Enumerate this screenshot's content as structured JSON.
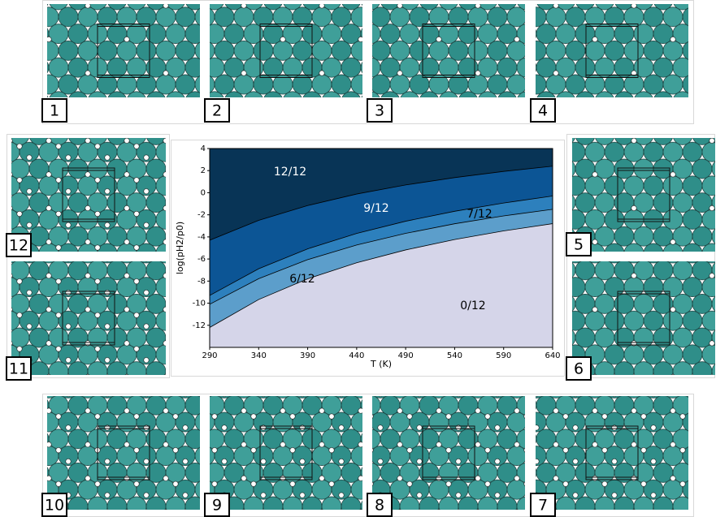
{
  "chart_data": {
    "type": "area",
    "x": [
      290,
      340,
      390,
      440,
      490,
      540,
      590,
      640
    ],
    "xlim": [
      290,
      640
    ],
    "ylim": [
      -14,
      4
    ],
    "xticks": [
      290,
      340,
      390,
      440,
      490,
      540,
      590,
      640
    ],
    "yticks": [
      -12,
      -10,
      -8,
      -6,
      -4,
      -2,
      0,
      2,
      4
    ],
    "xlabel": "T (K)",
    "ylabel": "log(pH2/p0)",
    "regions": [
      {
        "label": "0/12",
        "color": "#d5d5e9",
        "label_color": "#000000"
      },
      {
        "label": "6/12",
        "color": "#5c9ecb",
        "label_color": "#000000"
      },
      {
        "label": "7/12",
        "color": "#2d80bd",
        "label_color": "#000000"
      },
      {
        "label": "9/12",
        "color": "#0c5595",
        "label_color": "#ffffff"
      },
      {
        "label": "12/12",
        "color": "#083456",
        "label_color": "#ffffff"
      }
    ],
    "boundaries": [
      {
        "values": [
          -12.2,
          -9.67,
          -7.79,
          -6.34,
          -5.18,
          -4.24,
          -3.46,
          -2.8
        ]
      },
      {
        "values": [
          -10.1,
          -7.78,
          -6.06,
          -4.73,
          -3.68,
          -2.81,
          -2.1,
          -1.5
        ]
      },
      {
        "values": [
          -9.3,
          -6.88,
          -5.08,
          -3.69,
          -2.58,
          -1.68,
          -0.93,
          -0.3
        ]
      },
      {
        "values": [
          -4.3,
          -2.5,
          -1.16,
          -0.12,
          0.7,
          1.37,
          1.93,
          2.4
        ]
      }
    ]
  },
  "panels": [
    {
      "label": "1"
    },
    {
      "label": "2"
    },
    {
      "label": "3"
    },
    {
      "label": "4"
    },
    {
      "label": "5"
    },
    {
      "label": "6"
    },
    {
      "label": "7"
    },
    {
      "label": "8"
    },
    {
      "label": "9"
    },
    {
      "label": "10"
    },
    {
      "label": "11"
    },
    {
      "label": "12"
    }
  ]
}
